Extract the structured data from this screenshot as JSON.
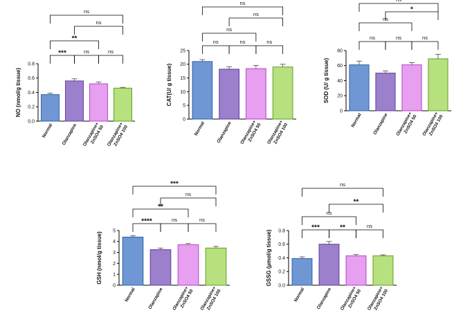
{
  "colors": {
    "Normal": "#6f97d3",
    "Olanzapine": "#9d80cc",
    "Olanzapine+ ZnSO4 50": "#e79ff0",
    "Olanzapine+ ZnSO4 100": "#b7e07e"
  },
  "edge_colors": {
    "Normal": "#2f5fa9",
    "Olanzapine": "#5a3c99",
    "Olanzapine+ ZnSO4 50": "#b642c5",
    "Olanzapine+ ZnSO4 100": "#5f9e24"
  },
  "chart_data": [
    {
      "id": "no",
      "type": "bar",
      "ylabel": "NO (nmol/g tissue)",
      "ylim": [
        0,
        0.8
      ],
      "yticks": [
        "0.0",
        "0.2",
        "0.4",
        "0.6",
        "0.8"
      ],
      "tick_values": [
        0,
        0.2,
        0.4,
        0.6,
        0.8
      ],
      "categories": [
        "Normal",
        "Olanzapine",
        "Olanzapine+ ZnSO4 50",
        "Olanzapine+ ZnSO4 100"
      ],
      "category_lines": [
        [
          "Normal"
        ],
        [
          "Olanzapine"
        ],
        [
          "Olanzapine+",
          "ZnSO4 50"
        ],
        [
          "Olanzapine+",
          "ZnSO4 100"
        ]
      ],
      "values": [
        0.37,
        0.56,
        0.52,
        0.46
      ],
      "errors": [
        0.02,
        0.03,
        0.025,
        0.01
      ],
      "comparisons": [
        {
          "from": 0,
          "to": 3,
          "label": "ns"
        },
        {
          "from": 1,
          "to": 3,
          "label": "ns"
        },
        {
          "from": 0,
          "to": 2,
          "label": "**"
        },
        {
          "from": 0,
          "to": 1,
          "label": "***"
        },
        {
          "from": 1,
          "to": 2,
          "label": "ns"
        },
        {
          "from": 2,
          "to": 3,
          "label": "ns"
        }
      ]
    },
    {
      "id": "cat",
      "type": "bar",
      "ylabel": "CAT(U/ g tissue)",
      "ylim": [
        0,
        25
      ],
      "yticks": [
        "0",
        "5",
        "10",
        "15",
        "20",
        "25"
      ],
      "tick_values": [
        0,
        5,
        10,
        15,
        20,
        25
      ],
      "categories": [
        "Normal",
        "Olanzapine",
        "Olanzapine+ ZnSO4 50",
        "Olanzapine+ ZnSO4 100"
      ],
      "category_lines": [
        [
          "Normal"
        ],
        [
          "Olanzapine"
        ],
        [
          "Olanzapine+",
          "ZnSO4 50"
        ],
        [
          "Olanzapine+",
          "ZnSO4 100"
        ]
      ],
      "values": [
        21,
        18.2,
        18.4,
        19
      ],
      "errors": [
        0.7,
        0.9,
        1.2,
        1.0
      ],
      "comparisons": [
        {
          "from": 0,
          "to": 3,
          "label": "ns"
        },
        {
          "from": 1,
          "to": 3,
          "label": "ns"
        },
        {
          "from": 0,
          "to": 2,
          "label": "ns"
        },
        {
          "from": 0,
          "to": 1,
          "label": "ns"
        },
        {
          "from": 1,
          "to": 2,
          "label": "ns"
        },
        {
          "from": 2,
          "to": 3,
          "label": "ns"
        }
      ]
    },
    {
      "id": "sod",
      "type": "bar",
      "ylabel": "SOD (U/ g tissue)",
      "ylim": [
        0,
        80
      ],
      "yticks": [
        "0",
        "20",
        "40",
        "60",
        "80"
      ],
      "tick_values": [
        0,
        20,
        40,
        60,
        80
      ],
      "categories": [
        "Normal",
        "Olanzapine",
        "Olanzapine+ ZnSO4 50",
        "Olanzapine+ ZnSO4 100"
      ],
      "category_lines": [
        [
          "Normal"
        ],
        [
          "Olanzapine"
        ],
        [
          "Olanzapine+",
          "ZnSO4 50"
        ],
        [
          "Olanzapine+",
          "ZnSO4 100"
        ]
      ],
      "values": [
        61,
        50,
        61,
        69
      ],
      "errors": [
        5,
        3,
        3,
        6
      ],
      "comparisons": [
        {
          "from": 0,
          "to": 3,
          "label": "ns"
        },
        {
          "from": 1,
          "to": 3,
          "label": "*"
        },
        {
          "from": 0,
          "to": 2,
          "label": "ns"
        },
        {
          "from": 0,
          "to": 1,
          "label": "ns"
        },
        {
          "from": 1,
          "to": 2,
          "label": "ns"
        },
        {
          "from": 2,
          "to": 3,
          "label": "ns"
        }
      ]
    },
    {
      "id": "gsh",
      "type": "bar",
      "ylabel": "GSH (nmol/g tissue)",
      "ylim": [
        0,
        5
      ],
      "yticks": [
        "0",
        "1",
        "2",
        "3",
        "4",
        "5"
      ],
      "tick_values": [
        0,
        1,
        2,
        3,
        4,
        5
      ],
      "categories": [
        "Normal",
        "Olanzapine",
        "Olanzapine+ ZnSO4 50",
        "Olanzapine+ ZnSO4 100"
      ],
      "category_lines": [
        [
          "Normal"
        ],
        [
          "Olanzapine"
        ],
        [
          "Olanzapine+",
          "ZnSO4 50"
        ],
        [
          "Olanzapine+",
          "ZnSO4 100"
        ]
      ],
      "values": [
        4.4,
        3.25,
        3.7,
        3.4
      ],
      "errors": [
        0.12,
        0.15,
        0.12,
        0.15
      ],
      "comparisons": [
        {
          "from": 0,
          "to": 3,
          "label": "***"
        },
        {
          "from": 1,
          "to": 3,
          "label": "ns"
        },
        {
          "from": 0,
          "to": 2,
          "label": "**"
        },
        {
          "from": 0,
          "to": 1,
          "label": "****"
        },
        {
          "from": 1,
          "to": 2,
          "label": "ns"
        },
        {
          "from": 2,
          "to": 3,
          "label": "ns"
        }
      ]
    },
    {
      "id": "gssg",
      "type": "bar",
      "ylabel": "GSSG (µmol/g tissue)",
      "ylim": [
        0,
        0.8
      ],
      "yticks": [
        "0.0",
        "0.2",
        "0.4",
        "0.6",
        "0.8"
      ],
      "tick_values": [
        0,
        0.2,
        0.4,
        0.6,
        0.8
      ],
      "categories": [
        "Normal",
        "Olanzapine",
        "Olanzapine+ ZnSO4 50",
        "Olanzapine+ ZnSO4 100"
      ],
      "category_lines": [
        [
          "Normal"
        ],
        [
          "Olanzapine"
        ],
        [
          "Olanzapine+",
          "ZnSO4 50"
        ],
        [
          "Olanzapine+",
          "ZnSO4 100"
        ]
      ],
      "values": [
        0.39,
        0.6,
        0.43,
        0.43
      ],
      "errors": [
        0.025,
        0.04,
        0.02,
        0.015
      ],
      "comparisons": [
        {
          "from": 0,
          "to": 3,
          "label": "ns"
        },
        {
          "from": 1,
          "to": 3,
          "label": "**"
        },
        {
          "from": 0,
          "to": 2,
          "label": "ns"
        },
        {
          "from": 0,
          "to": 1,
          "label": "***"
        },
        {
          "from": 1,
          "to": 2,
          "label": "**"
        },
        {
          "from": 2,
          "to": 3,
          "label": "ns"
        }
      ]
    }
  ]
}
